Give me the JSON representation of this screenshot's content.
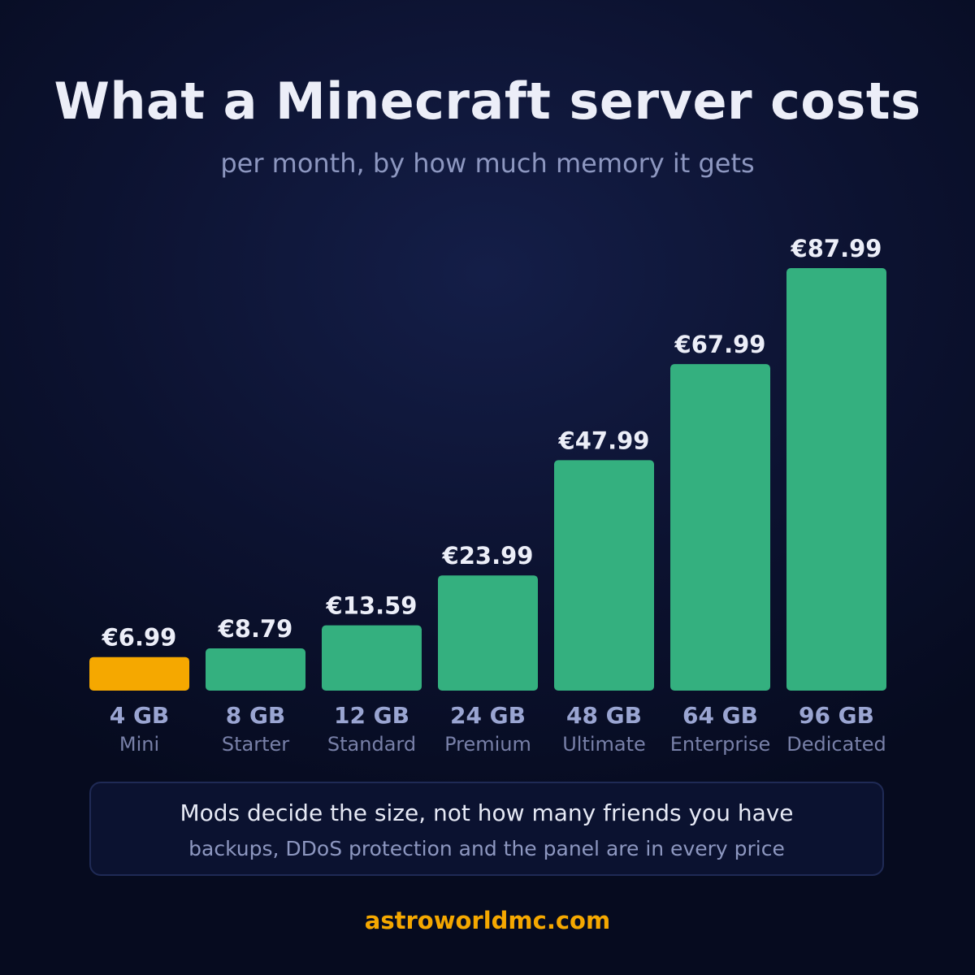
{
  "header": {
    "title": "What a Minecraft server costs",
    "subtitle": "per month, by how much memory it gets"
  },
  "chart_data": {
    "type": "bar",
    "categories": [
      "4 GB",
      "8 GB",
      "12 GB",
      "24 GB",
      "48 GB",
      "64 GB",
      "96 GB"
    ],
    "plan_names": [
      "Mini",
      "Starter",
      "Standard",
      "Premium",
      "Ultimate",
      "Enterprise",
      "Dedicated"
    ],
    "values": [
      6.99,
      8.79,
      13.59,
      23.99,
      47.99,
      67.99,
      87.99
    ],
    "value_labels": [
      "€6.99",
      "€8.79",
      "€13.59",
      "€23.99",
      "€47.99",
      "€67.99",
      "€87.99"
    ],
    "highlight_index": 0,
    "colors": {
      "highlight": "#f5a800",
      "bar": "#34b07f"
    },
    "ylim": [
      0,
      100
    ],
    "grid": false,
    "legend": "none"
  },
  "note": {
    "main": "Mods decide the size, not how many friends you have",
    "sub": "backups, DDoS protection and the panel are in every price"
  },
  "footer": {
    "site": "astroworldmc.com"
  }
}
